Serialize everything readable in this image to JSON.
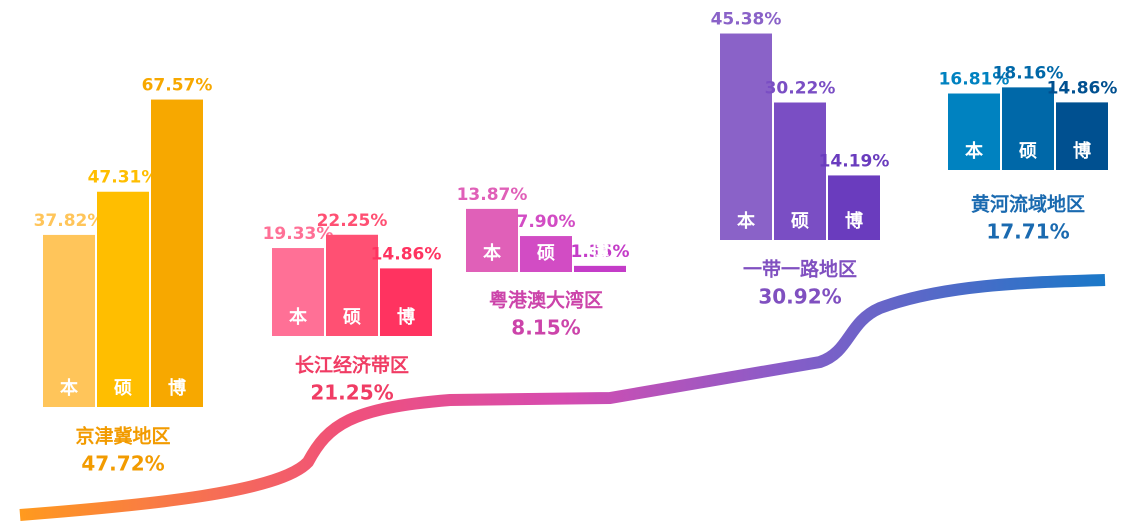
{
  "chart_data": [
    {
      "type": "bar",
      "title": "京津冀地区",
      "subtitle": "47.72%",
      "categories": [
        "本",
        "硕",
        "博"
      ],
      "values": [
        37.82,
        47.31,
        67.57
      ],
      "value_labels": [
        "37.82%",
        "47.31%",
        "67.57%"
      ],
      "colors": [
        "#ffc55a",
        "#ffbe00",
        "#f7a800"
      ],
      "text_color": "#f29b00"
    },
    {
      "type": "bar",
      "title": "长江经济带区",
      "subtitle": "21.25%",
      "categories": [
        "本",
        "硕",
        "博"
      ],
      "values": [
        19.33,
        22.25,
        14.86
      ],
      "value_labels": [
        "19.33%",
        "22.25%",
        "14.86%"
      ],
      "colors": [
        "#ff7096",
        "#ff5073",
        "#ff3360"
      ],
      "text_color": "#f03c64"
    },
    {
      "type": "bar",
      "title": "粤港澳大湾区",
      "subtitle": "8.15%",
      "categories": [
        "本",
        "硕",
        "博"
      ],
      "values": [
        13.87,
        7.9,
        1.35
      ],
      "value_labels": [
        "13.87%",
        "7.90%",
        "1.35%"
      ],
      "colors": [
        "#e060b8",
        "#d24cc4",
        "#c43cc8"
      ],
      "text_color": "#cc44aa"
    },
    {
      "type": "bar",
      "title": "一带一路地区",
      "subtitle": "30.92%",
      "categories": [
        "本",
        "硕",
        "博"
      ],
      "values": [
        45.38,
        30.22,
        14.19
      ],
      "value_labels": [
        "45.38%",
        "30.22%",
        "14.19%"
      ],
      "colors": [
        "#8a62c8",
        "#7a4ec4",
        "#6a3cbe"
      ],
      "text_color": "#8050c0"
    },
    {
      "type": "bar",
      "title": "黄河流域地区",
      "subtitle": "17.71%",
      "categories": [
        "本",
        "硕",
        "博"
      ],
      "values": [
        16.81,
        18.16,
        14.86
      ],
      "value_labels": [
        "16.81%",
        "18.16%",
        "14.86%"
      ],
      "colors": [
        "#0082c0",
        "#0068a8",
        "#005090"
      ],
      "text_color": "#1a6ab0"
    }
  ]
}
